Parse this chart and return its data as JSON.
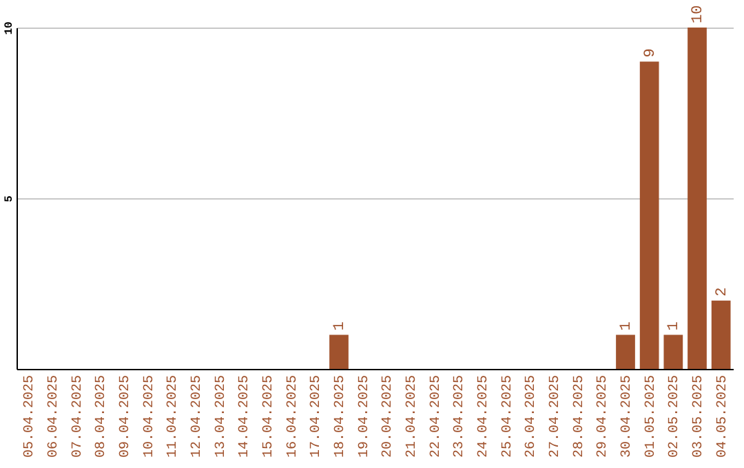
{
  "chart_data": {
    "type": "bar",
    "categories": [
      "05.04.2025",
      "06.04.2025",
      "07.04.2025",
      "08.04.2025",
      "09.04.2025",
      "10.04.2025",
      "11.04.2025",
      "12.04.2025",
      "13.04.2025",
      "14.04.2025",
      "15.04.2025",
      "16.04.2025",
      "17.04.2025",
      "18.04.2025",
      "19.04.2025",
      "20.04.2025",
      "21.04.2025",
      "22.04.2025",
      "23.04.2025",
      "24.04.2025",
      "25.04.2025",
      "26.04.2025",
      "27.04.2025",
      "28.04.2025",
      "29.04.2025",
      "30.04.2025",
      "01.05.2025",
      "02.05.2025",
      "03.05.2025",
      "04.05.2025"
    ],
    "values": [
      0,
      0,
      0,
      0,
      0,
      0,
      0,
      0,
      0,
      0,
      0,
      0,
      0,
      1,
      0,
      0,
      0,
      0,
      0,
      0,
      0,
      0,
      0,
      0,
      0,
      1,
      9,
      1,
      10,
      2
    ],
    "value_labels": [
      null,
      null,
      null,
      null,
      null,
      null,
      null,
      null,
      null,
      null,
      null,
      null,
      null,
      "1",
      null,
      null,
      null,
      null,
      null,
      null,
      null,
      null,
      null,
      null,
      null,
      "1",
      "9",
      "1",
      "10",
      "2"
    ],
    "color": "#a0522d",
    "ylim": [
      0,
      10
    ],
    "yticks": [
      5,
      10
    ],
    "grid": "y"
  }
}
